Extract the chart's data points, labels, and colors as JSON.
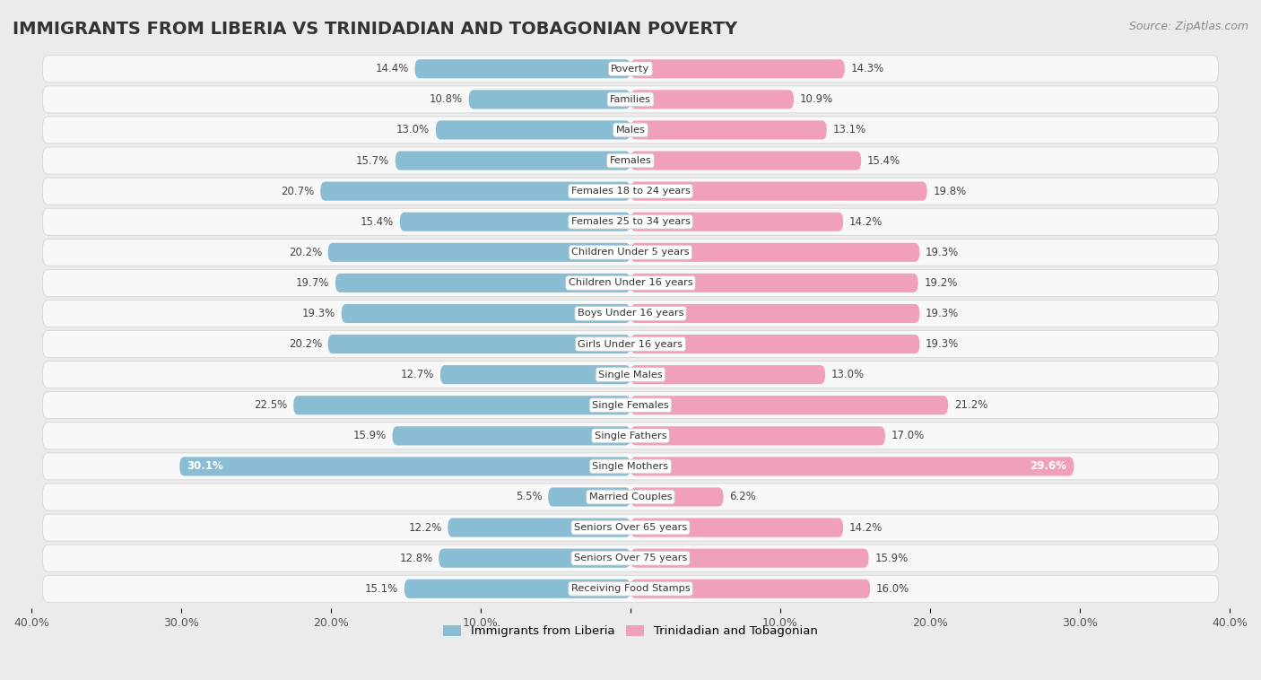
{
  "title": "IMMIGRANTS FROM LIBERIA VS TRINIDADIAN AND TOBAGONIAN POVERTY",
  "source": "Source: ZipAtlas.com",
  "categories": [
    "Poverty",
    "Families",
    "Males",
    "Females",
    "Females 18 to 24 years",
    "Females 25 to 34 years",
    "Children Under 5 years",
    "Children Under 16 years",
    "Boys Under 16 years",
    "Girls Under 16 years",
    "Single Males",
    "Single Females",
    "Single Fathers",
    "Single Mothers",
    "Married Couples",
    "Seniors Over 65 years",
    "Seniors Over 75 years",
    "Receiving Food Stamps"
  ],
  "liberia_values": [
    14.4,
    10.8,
    13.0,
    15.7,
    20.7,
    15.4,
    20.2,
    19.7,
    19.3,
    20.2,
    12.7,
    22.5,
    15.9,
    30.1,
    5.5,
    12.2,
    12.8,
    15.1
  ],
  "trinidad_values": [
    14.3,
    10.9,
    13.1,
    15.4,
    19.8,
    14.2,
    19.3,
    19.2,
    19.3,
    19.3,
    13.0,
    21.2,
    17.0,
    29.6,
    6.2,
    14.2,
    15.9,
    16.0
  ],
  "liberia_color": "#89bdd3",
  "trinidad_color": "#f0a0b8",
  "liberia_label": "Immigrants from Liberia",
  "trinidad_label": "Trinidadian and Tobagonian",
  "xlim": 40.0,
  "background_color": "#ebebeb",
  "row_bg_color": "#f8f8f8",
  "title_fontsize": 14,
  "source_fontsize": 9,
  "bar_label_fontsize": 8.5,
  "value_label_inside_threshold": 28.0
}
